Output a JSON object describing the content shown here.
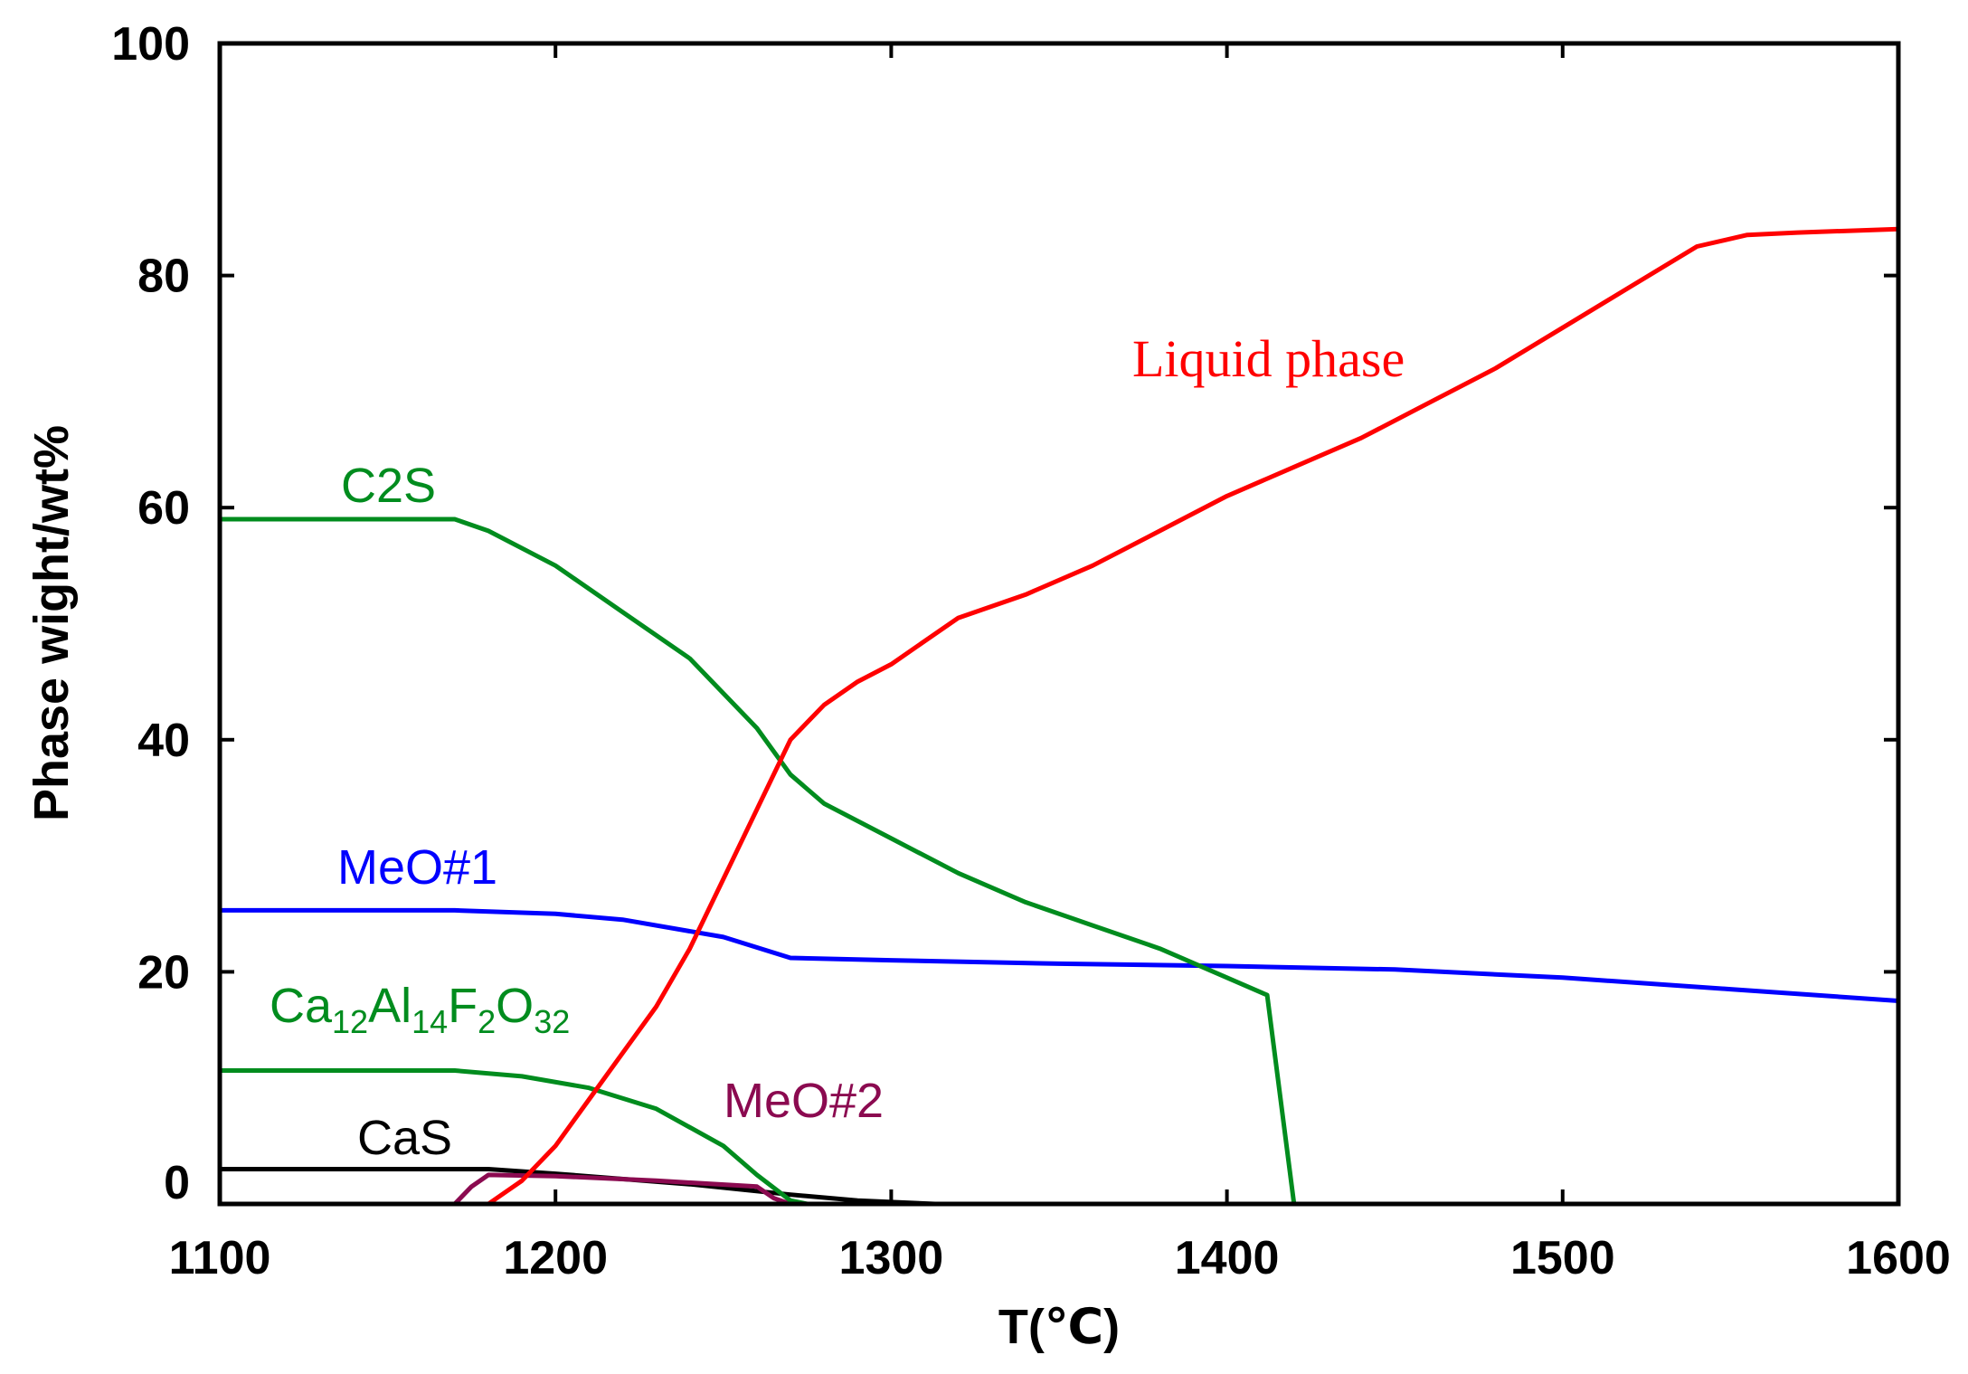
{
  "chart_data": {
    "type": "line",
    "title": "",
    "xlabel": "T(℃)",
    "ylabel": "Phase wight/wt%",
    "xlim": [
      1100,
      1600
    ],
    "ylim": [
      0,
      100
    ],
    "xticks": [
      1100,
      1200,
      1300,
      1400,
      1500,
      1600
    ],
    "yticks": [
      0,
      20,
      40,
      60,
      80,
      100
    ],
    "grid": false,
    "series": [
      {
        "name": "Liquid phase",
        "label": "Liquid phase",
        "color": "#ff0000",
        "x": [
          1180,
          1190,
          1200,
          1210,
          1220,
          1230,
          1240,
          1250,
          1260,
          1270,
          1280,
          1290,
          1300,
          1310,
          1320,
          1340,
          1360,
          1380,
          1400,
          1420,
          1440,
          1460,
          1480,
          1500,
          1520,
          1540,
          1555,
          1570,
          1600
        ],
        "y": [
          0,
          2,
          5,
          9,
          13,
          17,
          22,
          28,
          34,
          40,
          43,
          45,
          46.5,
          48.5,
          50.5,
          52.5,
          55,
          58,
          61,
          63.5,
          66,
          69,
          72,
          75.5,
          79,
          82.5,
          83.5,
          83.7,
          84
        ]
      },
      {
        "name": "C2S",
        "label": "C2S",
        "color": "#008c1e",
        "x": [
          1100,
          1170,
          1180,
          1200,
          1220,
          1240,
          1260,
          1270,
          1280,
          1300,
          1320,
          1340,
          1360,
          1380,
          1400,
          1412,
          1420
        ],
        "y": [
          59,
          59,
          58,
          55,
          51,
          47,
          41,
          37,
          34.5,
          31.5,
          28.5,
          26,
          24,
          22,
          19.5,
          18,
          0
        ]
      },
      {
        "name": "MeO#1",
        "label": "MeO#1",
        "color": "#0000ff",
        "x": [
          1100,
          1170,
          1200,
          1220,
          1250,
          1270,
          1300,
          1350,
          1400,
          1450,
          1500,
          1550,
          1600
        ],
        "y": [
          25.3,
          25.3,
          25,
          24.5,
          23,
          21.2,
          21,
          20.7,
          20.5,
          20.2,
          19.5,
          18.5,
          17.5
        ]
      },
      {
        "name": "Ca12Al14F2O32",
        "label": "Ca12Al14F2O32",
        "color": "#008c1e",
        "x": [
          1100,
          1170,
          1190,
          1210,
          1230,
          1250,
          1260,
          1270,
          1275
        ],
        "y": [
          11.5,
          11.5,
          11,
          10,
          8.2,
          5,
          2.5,
          0.3,
          0
        ]
      },
      {
        "name": "CaS",
        "label": "CaS",
        "color": "#000000",
        "x": [
          1100,
          1180,
          1200,
          1240,
          1270,
          1290,
          1313
        ],
        "y": [
          3,
          3,
          2.6,
          1.7,
          0.8,
          0.3,
          0
        ]
      },
      {
        "name": "MeO#2",
        "label": "MeO#2",
        "color": "#8b0a50",
        "x": [
          1170,
          1175,
          1180,
          1200,
          1230,
          1260,
          1265,
          1270
        ],
        "y": [
          0,
          1.5,
          2.5,
          2.4,
          2,
          1.5,
          0.5,
          0
        ]
      }
    ]
  }
}
